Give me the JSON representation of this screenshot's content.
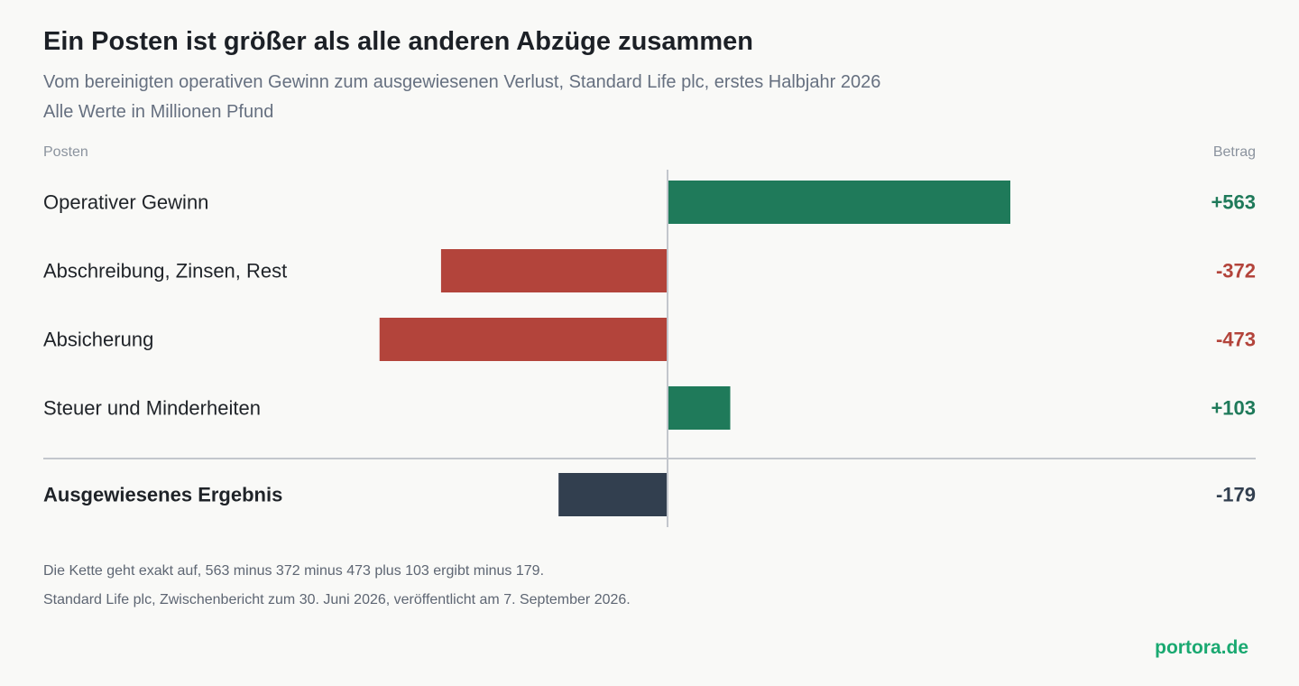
{
  "header": {
    "title": "Ein Posten ist größer als alle anderen Abzüge zusammen",
    "subtitle": "Vom bereinigten operativen Gewinn zum ausgewiesenen Verlust, Standard Life plc, erstes Halbjahr 2026",
    "unit_note": "Alle Werte in Millionen Pfund"
  },
  "columns": {
    "left": "Posten",
    "right": "Betrag"
  },
  "chart_data": {
    "type": "bar",
    "orientation": "horizontal",
    "categories": [
      "Operativer Gewinn",
      "Abschreibung, Zinsen, Rest",
      "Absicherung",
      "Steuer und Minderheiten",
      "Ausgewiesenes Ergebnis"
    ],
    "values": [
      563,
      -372,
      -473,
      103,
      -179
    ],
    "value_labels": [
      "+563",
      "-372",
      "-473",
      "+103",
      "-179"
    ],
    "total_index": 4,
    "colors": {
      "positive": "#1f7a5a",
      "negative": "#b3443b",
      "total": "#323f4f",
      "axis": "#c3c7cd"
    }
  },
  "footer": {
    "note_1": "Die Kette geht exakt auf, 563 minus 372 minus 473 plus 103 ergibt minus 179.",
    "note_2": "Standard Life plc, Zwischenbericht zum 30. Juni 2026, veröffentlicht am 7. September 2026.",
    "brand": "portora.de"
  }
}
